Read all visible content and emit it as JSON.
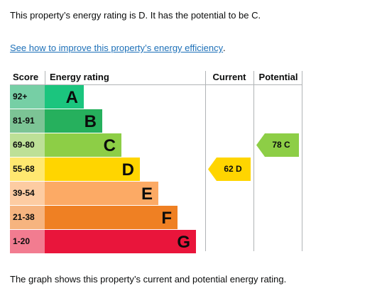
{
  "summary_text": "This property’s energy rating is D. It has the potential to be C.",
  "improve_link_text": "See how to improve this property’s energy efficiency",
  "improve_link_suffix": ".",
  "caption_text": "The graph shows this property’s current and potential energy rating.",
  "chart": {
    "headers": {
      "score": "Score",
      "rating": "Energy rating",
      "current": "Current",
      "potential": "Potential"
    },
    "bands": [
      {
        "letter": "A",
        "range": "92+",
        "bar_color": "#1bc57e",
        "score_bg": "#76cfa5",
        "width_fraction": 0.24
      },
      {
        "letter": "B",
        "range": "81-91",
        "bar_color": "#26b05d",
        "score_bg": "#7cc495",
        "width_fraction": 0.36
      },
      {
        "letter": "C",
        "range": "69-80",
        "bar_color": "#8dce46",
        "score_bg": "#bde097",
        "width_fraction": 0.48
      },
      {
        "letter": "D",
        "range": "55-68",
        "bar_color": "#ffd500",
        "score_bg": "#ffe870",
        "width_fraction": 0.6
      },
      {
        "letter": "E",
        "range": "39-54",
        "bar_color": "#fcaa65",
        "score_bg": "#fdcca2",
        "width_fraction": 0.72
      },
      {
        "letter": "F",
        "range": "21-38",
        "bar_color": "#ef8023",
        "score_bg": "#f6b47f",
        "width_fraction": 0.84
      },
      {
        "letter": "G",
        "range": "1-20",
        "bar_color": "#e9153b",
        "score_bg": "#f27c90",
        "width_fraction": 0.96
      }
    ],
    "current": {
      "value": 62,
      "letter": "D",
      "label": "62  D",
      "band_index": 3,
      "color": "#ffd500"
    },
    "potential": {
      "value": 78,
      "letter": "C",
      "label": "78  C",
      "band_index": 2,
      "color": "#8dce46"
    }
  }
}
